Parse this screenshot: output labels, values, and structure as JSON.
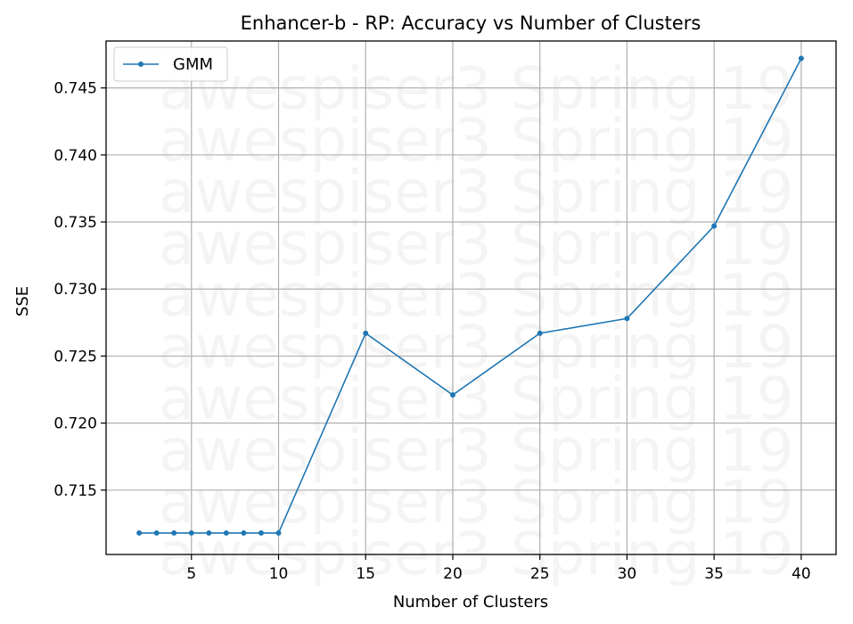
{
  "chart_data": {
    "type": "line",
    "title": "Enhancer-b - RP: Accuracy vs Number of Clusters",
    "xlabel": "Number of Clusters",
    "ylabel": "SSE",
    "xlim": [
      0.1,
      42.0
    ],
    "ylim": [
      0.7102,
      0.7485
    ],
    "xticks": [
      5,
      10,
      15,
      20,
      25,
      30,
      35,
      40
    ],
    "xtick_labels": [
      "5",
      "10",
      "15",
      "20",
      "25",
      "30",
      "35",
      "40"
    ],
    "yticks": [
      0.715,
      0.72,
      0.725,
      0.73,
      0.735,
      0.74,
      0.745
    ],
    "ytick_labels": [
      "0.715",
      "0.720",
      "0.725",
      "0.730",
      "0.735",
      "0.740",
      "0.745"
    ],
    "grid": true,
    "legend_position": "top-left",
    "series": [
      {
        "name": "GMM",
        "color": "#1f77b4",
        "marker": "circle",
        "x": [
          2,
          3,
          4,
          5,
          6,
          7,
          8,
          9,
          10,
          15,
          20,
          25,
          30,
          35,
          40
        ],
        "y": [
          0.7118,
          0.7118,
          0.7118,
          0.7118,
          0.7118,
          0.7118,
          0.7118,
          0.7118,
          0.7118,
          0.7267,
          0.7221,
          0.7267,
          0.7278,
          0.7347,
          0.7472
        ]
      }
    ],
    "watermark": {
      "text": "awespiser3 Spring 19",
      "repeat": 10
    }
  }
}
